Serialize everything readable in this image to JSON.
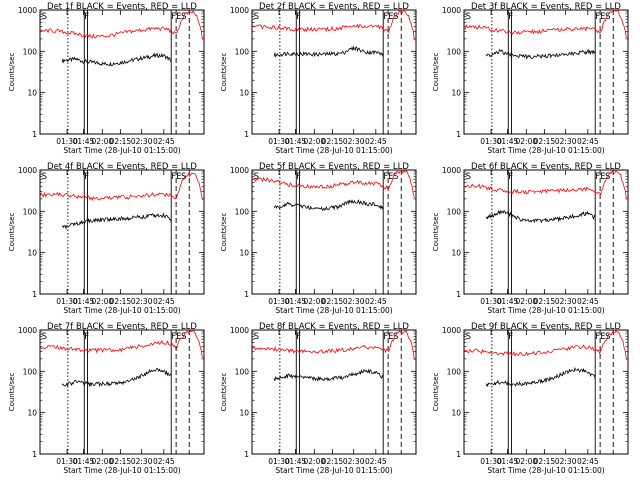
{
  "chart_data": [
    {
      "type": "line",
      "title": "Det 1f BLACK = Events, RED = LLD",
      "xlabel": "Start Time (28-Jul-10 01:15:00)",
      "ylabel": "Counts/sec",
      "x_ticks": [
        "01:30",
        "01:45",
        "02:00",
        "02:15",
        "02:30",
        "02:45"
      ],
      "y_ticks": [
        "1",
        "10",
        "100",
        "1000"
      ],
      "y_scale": "log",
      "ylim": [
        1,
        1000
      ],
      "markers": [
        {
          "label": "S",
          "type": "dotted"
        },
        {
          "label": "F",
          "type": "solid"
        },
        {
          "label": "F",
          "type": "solid"
        },
        {
          "label": "E",
          "type": "solid"
        },
        {
          "label": "S",
          "type": "dashed"
        },
        {
          "label": "",
          "type": "dashed"
        }
      ],
      "series": [
        {
          "name": "Events",
          "color": "#000000",
          "values": [
            60,
            62,
            65,
            58,
            55,
            53,
            50,
            50,
            52,
            55,
            60,
            65,
            70,
            75,
            80,
            78,
            60
          ]
        },
        {
          "name": "LLD",
          "color": "#ff0000",
          "values": [
            300,
            320,
            310,
            290,
            270,
            250,
            230,
            230,
            240,
            260,
            290,
            310,
            330,
            350,
            360,
            340,
            250,
            800,
            900,
            200
          ]
        }
      ]
    },
    {
      "type": "line",
      "title": "Det 2f BLACK = Events, RED = LLD",
      "xlabel": "Start Time (28-Jul-10 01:15:00)",
      "ylabel": "Counts/sec",
      "x_ticks": [
        "01:30",
        "01:45",
        "02:00",
        "02:15",
        "02:30",
        "02:45"
      ],
      "y_ticks": [
        "1",
        "10",
        "100",
        "1000"
      ],
      "y_scale": "log",
      "ylim": [
        1,
        1000
      ],
      "markers": [
        {
          "label": "S",
          "type": "dotted"
        },
        {
          "label": "F",
          "type": "solid"
        },
        {
          "label": "F",
          "type": "solid"
        },
        {
          "label": "E",
          "type": "solid"
        },
        {
          "label": "S",
          "type": "dashed"
        },
        {
          "label": "",
          "type": "dashed"
        }
      ],
      "series": [
        {
          "name": "Events",
          "color": "#000000",
          "values": [
            80,
            85,
            90,
            88,
            87,
            86,
            85,
            85,
            86,
            88,
            90,
            110,
            120,
            100,
            95,
            95,
            85
          ]
        },
        {
          "name": "LLD",
          "color": "#ff0000",
          "values": [
            380,
            400,
            390,
            370,
            360,
            350,
            340,
            340,
            345,
            350,
            360,
            380,
            400,
            410,
            400,
            390,
            300,
            850,
            950,
            200
          ]
        }
      ]
    },
    {
      "type": "line",
      "title": "Det 3f BLACK = Events, RED = LLD",
      "xlabel": "Start Time (28-Jul-10 01:15:00)",
      "ylabel": "Counts/sec",
      "x_ticks": [
        "01:30",
        "01:45",
        "02:00",
        "02:15",
        "02:30",
        "02:45"
      ],
      "y_ticks": [
        "1",
        "10",
        "100",
        "1000"
      ],
      "y_scale": "log",
      "ylim": [
        1,
        1000
      ],
      "markers": [
        {
          "label": "S",
          "type": "dotted"
        },
        {
          "label": "F",
          "type": "solid"
        },
        {
          "label": "F",
          "type": "solid"
        },
        {
          "label": "E",
          "type": "solid"
        },
        {
          "label": "S",
          "type": "dashed"
        },
        {
          "label": "",
          "type": "dashed"
        }
      ],
      "series": [
        {
          "name": "Events",
          "color": "#000000",
          "values": [
            80,
            85,
            100,
            90,
            80,
            78,
            75,
            75,
            76,
            78,
            80,
            82,
            85,
            90,
            95,
            98,
            95
          ]
        },
        {
          "name": "LLD",
          "color": "#ff0000",
          "values": [
            380,
            400,
            380,
            350,
            320,
            300,
            290,
            290,
            300,
            310,
            320,
            330,
            340,
            350,
            360,
            350,
            270,
            850,
            950,
            200
          ]
        }
      ]
    },
    {
      "type": "line",
      "title": "Det 4f BLACK = Events, RED = LLD",
      "xlabel": "Start Time (28-Jul-10 01:15:00)",
      "ylabel": "Counts/sec",
      "x_ticks": [
        "01:30",
        "01:45",
        "02:00",
        "02:15",
        "02:30",
        "02:45"
      ],
      "y_ticks": [
        "1",
        "10",
        "100",
        "1000"
      ],
      "y_scale": "log",
      "ylim": [
        1,
        1000
      ],
      "markers": [
        {
          "label": "S",
          "type": "dotted"
        },
        {
          "label": "F",
          "type": "solid"
        },
        {
          "label": "F",
          "type": "solid"
        },
        {
          "label": "E",
          "type": "solid"
        },
        {
          "label": "S",
          "type": "dashed"
        },
        {
          "label": "",
          "type": "dashed"
        }
      ],
      "series": [
        {
          "name": "Events",
          "color": "#000000",
          "values": [
            40,
            45,
            50,
            55,
            58,
            60,
            62,
            64,
            66,
            68,
            70,
            72,
            75,
            78,
            80,
            80,
            60
          ]
        },
        {
          "name": "LLD",
          "color": "#ff0000",
          "values": [
            250,
            260,
            270,
            250,
            230,
            220,
            210,
            205,
            210,
            215,
            220,
            230,
            240,
            250,
            260,
            255,
            200,
            700,
            850,
            200
          ]
        }
      ]
    },
    {
      "type": "line",
      "title": "Det 5f BLACK = Events, RED = LLD",
      "xlabel": "Start Time (28-Jul-10 01:15:00)",
      "ylabel": "Counts/sec",
      "x_ticks": [
        "01:30",
        "01:45",
        "02:00",
        "02:15",
        "02:30",
        "02:45"
      ],
      "y_ticks": [
        "1",
        "10",
        "100",
        "1000"
      ],
      "y_scale": "log",
      "ylim": [
        1,
        1000
      ],
      "markers": [
        {
          "label": "S",
          "type": "dotted"
        },
        {
          "label": "F",
          "type": "solid"
        },
        {
          "label": "F",
          "type": "solid"
        },
        {
          "label": "E",
          "type": "solid"
        },
        {
          "label": "S",
          "type": "dashed"
        },
        {
          "label": "",
          "type": "dashed"
        }
      ],
      "series": [
        {
          "name": "Events",
          "color": "#000000",
          "values": [
            120,
            130,
            150,
            145,
            135,
            125,
            118,
            115,
            118,
            125,
            140,
            170,
            175,
            160,
            150,
            145,
            120
          ]
        },
        {
          "name": "LLD",
          "color": "#ff0000",
          "values": [
            550,
            600,
            580,
            520,
            460,
            420,
            400,
            390,
            395,
            400,
            430,
            480,
            500,
            490,
            470,
            460,
            350,
            900,
            950,
            200
          ]
        }
      ]
    },
    {
      "type": "line",
      "title": "Det 6f BLACK = Events, RED = LLD",
      "xlabel": "Start Time (28-Jul-10 01:15:00)",
      "ylabel": "Counts/sec",
      "x_ticks": [
        "01:30",
        "01:45",
        "02:00",
        "02:15",
        "02:30",
        "02:45"
      ],
      "y_ticks": [
        "1",
        "10",
        "100",
        "1000"
      ],
      "y_scale": "log",
      "ylim": [
        1,
        1000
      ],
      "markers": [
        {
          "label": "S",
          "type": "dotted"
        },
        {
          "label": "F",
          "type": "solid"
        },
        {
          "label": "F",
          "type": "solid"
        },
        {
          "label": "E",
          "type": "solid"
        },
        {
          "label": "S",
          "type": "dashed"
        },
        {
          "label": "",
          "type": "dashed"
        }
      ],
      "series": [
        {
          "name": "Events",
          "color": "#000000",
          "values": [
            70,
            80,
            100,
            95,
            75,
            65,
            60,
            58,
            60,
            62,
            65,
            68,
            72,
            78,
            85,
            88,
            70
          ]
        },
        {
          "name": "LLD",
          "color": "#ff0000",
          "values": [
            400,
            420,
            400,
            360,
            330,
            310,
            300,
            295,
            300,
            305,
            310,
            320,
            330,
            340,
            350,
            345,
            260,
            850,
            950,
            200
          ]
        }
      ]
    },
    {
      "type": "line",
      "title": "Det 7f BLACK = Events, RED = LLD",
      "xlabel": "Start Time (28-Jul-10 01:15:00)",
      "ylabel": "Counts/sec",
      "x_ticks": [
        "01:30",
        "01:45",
        "02:00",
        "02:15",
        "02:30",
        "02:45"
      ],
      "y_ticks": [
        "1",
        "10",
        "100",
        "1000"
      ],
      "y_scale": "log",
      "ylim": [
        1,
        1000
      ],
      "markers": [
        {
          "label": "S",
          "type": "dotted"
        },
        {
          "label": "F",
          "type": "solid"
        },
        {
          "label": "F",
          "type": "solid"
        },
        {
          "label": "E",
          "type": "solid"
        },
        {
          "label": "S",
          "type": "dashed"
        },
        {
          "label": "",
          "type": "dashed"
        }
      ],
      "series": [
        {
          "name": "Events",
          "color": "#000000",
          "values": [
            45,
            50,
            55,
            52,
            50,
            50,
            50,
            50,
            52,
            55,
            60,
            70,
            85,
            100,
            110,
            100,
            80
          ]
        },
        {
          "name": "LLD",
          "color": "#ff0000",
          "values": [
            380,
            400,
            380,
            360,
            340,
            330,
            320,
            320,
            325,
            330,
            350,
            380,
            420,
            460,
            500,
            480,
            380,
            850,
            950,
            200
          ]
        }
      ]
    },
    {
      "type": "line",
      "title": "Det 8f BLACK = Events, RED = LLD",
      "xlabel": "Start Time (28-Jul-10 01:15:00)",
      "ylabel": "Counts/sec",
      "x_ticks": [
        "01:30",
        "01:45",
        "02:00",
        "02:15",
        "02:30",
        "02:45"
      ],
      "y_ticks": [
        "1",
        "10",
        "100",
        "1000"
      ],
      "y_scale": "log",
      "ylim": [
        1,
        1000
      ],
      "markers": [
        {
          "label": "S",
          "type": "dotted"
        },
        {
          "label": "F",
          "type": "solid"
        },
        {
          "label": "F",
          "type": "solid"
        },
        {
          "label": "E",
          "type": "solid"
        },
        {
          "label": "S",
          "type": "dashed"
        },
        {
          "label": "",
          "type": "dashed"
        }
      ],
      "series": [
        {
          "name": "Events",
          "color": "#000000",
          "values": [
            65,
            70,
            80,
            75,
            70,
            68,
            66,
            65,
            66,
            68,
            72,
            80,
            90,
            100,
            100,
            90,
            70
          ]
        },
        {
          "name": "LLD",
          "color": "#ff0000",
          "values": [
            350,
            370,
            360,
            340,
            320,
            310,
            300,
            300,
            305,
            310,
            320,
            340,
            360,
            380,
            390,
            370,
            290,
            850,
            950,
            200
          ]
        }
      ]
    },
    {
      "type": "line",
      "title": "Det 9f BLACK = Events, RED = LLD",
      "xlabel": "Start Time (28-Jul-10 01:15:00)",
      "ylabel": "Counts/sec",
      "x_ticks": [
        "01:30",
        "01:45",
        "02:00",
        "02:15",
        "02:30",
        "02:45"
      ],
      "y_ticks": [
        "1",
        "10",
        "100",
        "1000"
      ],
      "y_scale": "log",
      "ylim": [
        1,
        1000
      ],
      "markers": [
        {
          "label": "S",
          "type": "dotted"
        },
        {
          "label": "F",
          "type": "solid"
        },
        {
          "label": "F",
          "type": "solid"
        },
        {
          "label": "E",
          "type": "solid"
        },
        {
          "label": "S",
          "type": "dashed"
        },
        {
          "label": "",
          "type": "dashed"
        }
      ],
      "series": [
        {
          "name": "Events",
          "color": "#000000",
          "values": [
            45,
            50,
            55,
            52,
            50,
            50,
            52,
            55,
            58,
            62,
            70,
            85,
            100,
            110,
            105,
            95,
            70
          ]
        },
        {
          "name": "LLD",
          "color": "#ff0000",
          "values": [
            300,
            320,
            310,
            290,
            280,
            270,
            265,
            265,
            270,
            280,
            300,
            330,
            360,
            380,
            390,
            360,
            280,
            800,
            950,
            200
          ]
        }
      ]
    }
  ]
}
